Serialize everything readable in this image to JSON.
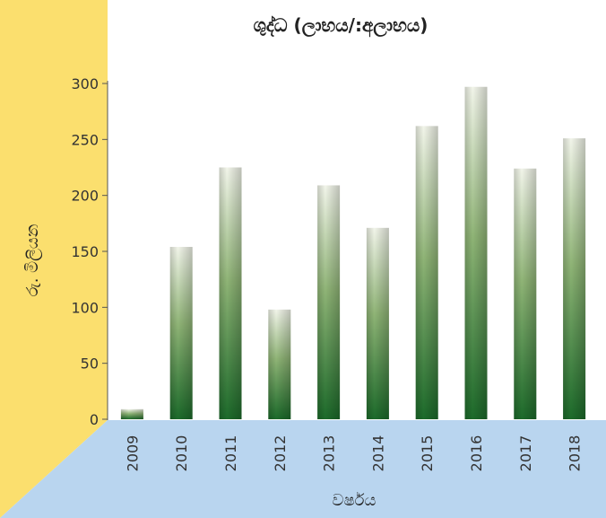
{
  "chart_data": {
    "type": "bar",
    "title": "ශුද්ධ (ලාභය/:අලාභය)",
    "xlabel": "වර්ෂය",
    "ylabel": "රු. මිලියන",
    "categories": [
      "2009",
      "2010",
      "2011",
      "2012",
      "2013",
      "2014",
      "2015",
      "2016",
      "2017",
      "2018"
    ],
    "values": [
      9,
      154,
      225,
      98,
      209,
      171,
      262,
      297,
      224,
      251
    ],
    "ylim": [
      0,
      300
    ],
    "yticks": [
      0,
      50,
      100,
      150,
      200,
      250,
      300
    ],
    "grid": false,
    "legend": "none",
    "colors": {
      "bar_top": "#f2f5ea",
      "bar_bottom": "#1c6a2a",
      "wall": "#fbdf6e",
      "floor": "#b9d5ef"
    }
  }
}
